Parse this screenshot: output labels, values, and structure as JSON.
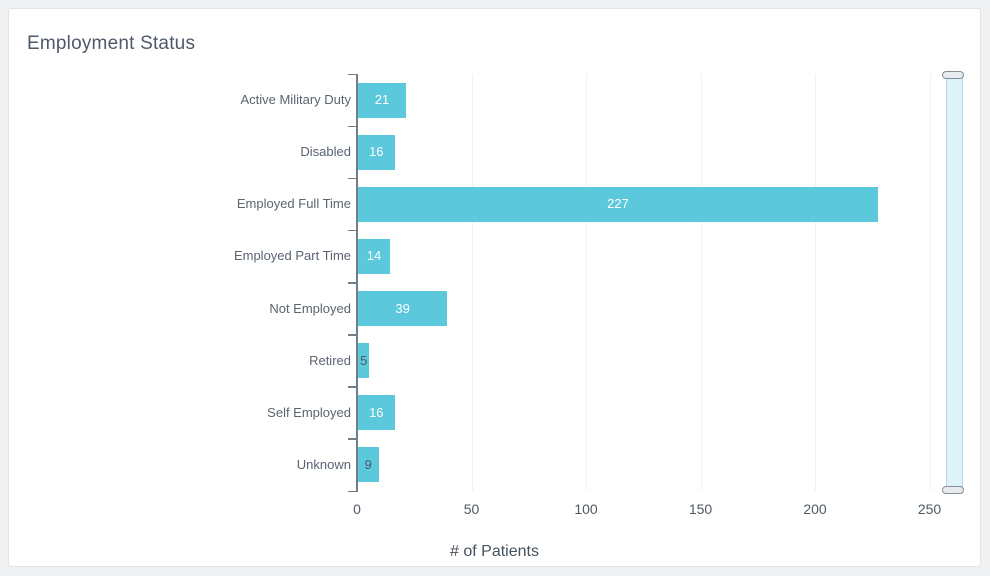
{
  "header": {
    "title": "Employment Status"
  },
  "chart_data": {
    "type": "bar",
    "orientation": "horizontal",
    "title": "Employment Status",
    "categories": [
      "Active Military Duty",
      "Disabled",
      "Employed Full Time",
      "Employed Part Time",
      "Not Employed",
      "Retired",
      "Self Employed",
      "Unknown"
    ],
    "values": [
      21,
      16,
      227,
      14,
      39,
      5,
      16,
      9
    ],
    "xlabel": "# of Patients",
    "x_ticks": [
      0,
      50,
      100,
      150,
      200,
      250
    ],
    "xlim": [
      0,
      265
    ],
    "grid": "vertical-only",
    "legend": "none",
    "colors": {
      "bar": "#5bc8dc",
      "value_label_inside": "#ffffff",
      "value_label_small_bar": "#4e5a66",
      "axis_line": "#737d86",
      "gridline": "#f0f1f2",
      "category_label": "#5a6470",
      "tick_label": "#4e5964",
      "title": "#4e5a69"
    }
  },
  "scroll_slider": {
    "orientation": "vertical",
    "track_color": "#ddf3f9",
    "handle_color": "#e8ebed"
  }
}
